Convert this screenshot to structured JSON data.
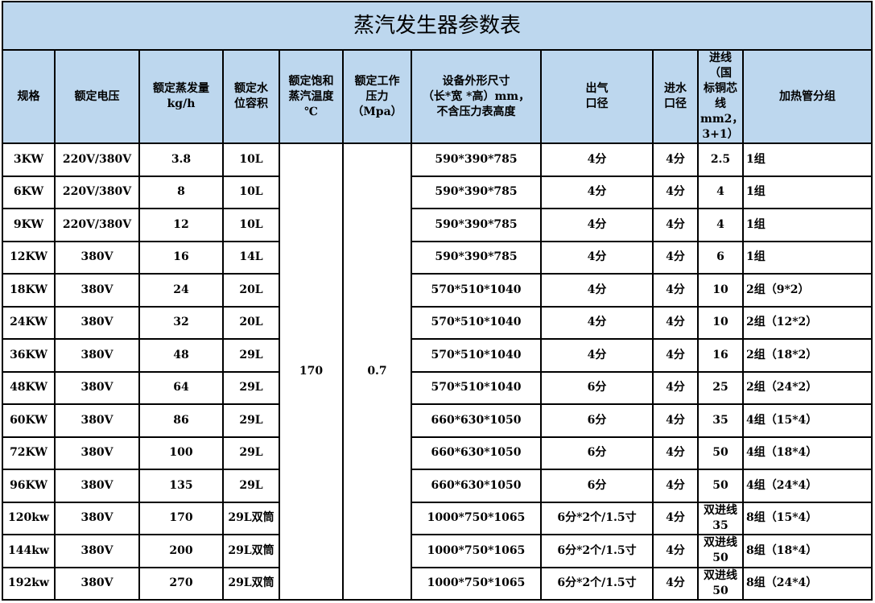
{
  "title": "蒸汽发生器参数表",
  "headers": [
    "规格",
    "额定电压",
    "额定蒸发量\nkg/h",
    "额定水\n位容积",
    "额定饱和\n蒸汽温度\n℃",
    "额定工作\n压力\n（Mpa）",
    "设备外形尺寸\n（长*宽 *高）mm，\n不含压力表高度",
    "出气\n口径",
    "进水\n口径",
    "进线（国\n标铜芯线\nmm2，\n3+1）",
    "加热管分组"
  ],
  "merged": {
    "temperature": "170",
    "pressure": "0.7"
  },
  "rows": [
    [
      "3KW",
      "220V/380V",
      "3.8",
      "10L",
      "590*390*785",
      "4分",
      "4分",
      "2.5",
      "1组"
    ],
    [
      "6KW",
      "220V/380V",
      "8",
      "10L",
      "590*390*785",
      "4分",
      "4分",
      "4",
      "1组"
    ],
    [
      "9KW",
      "220V/380V",
      "12",
      "10L",
      "590*390*785",
      "4分",
      "4分",
      "4",
      "1组"
    ],
    [
      "12KW",
      "380V",
      "16",
      "14L",
      "590*390*785",
      "4分",
      "4分",
      "6",
      "1组"
    ],
    [
      "18KW",
      "380V",
      "24",
      "20L",
      "570*510*1040",
      "4分",
      "4分",
      "10",
      "2组（9*2）"
    ],
    [
      "24KW",
      "380V",
      "32",
      "20L",
      "570*510*1040",
      "4分",
      "4分",
      "10",
      "2组（12*2）"
    ],
    [
      "36KW",
      "380V",
      "48",
      "29L",
      "570*510*1040",
      "4分",
      "4分",
      "16",
      "2组（18*2）"
    ],
    [
      "48KW",
      "380V",
      "64",
      "29L",
      "570*510*1040",
      "6分",
      "4分",
      "25",
      "2组（24*2）"
    ],
    [
      "60KW",
      "380V",
      "86",
      "29L",
      "660*630*1050",
      "6分",
      "4分",
      "35",
      "4组（15*4）"
    ],
    [
      "72KW",
      "380V",
      "100",
      "29L",
      "660*630*1050",
      "6分",
      "4分",
      "50",
      "4组（18*4）"
    ],
    [
      "96KW",
      "380V",
      "135",
      "29L",
      "660*630*1050",
      "6分",
      "4分",
      "50",
      "4组（24*4）"
    ],
    [
      "120kw",
      "380V",
      "170",
      "29L双筒",
      "1000*750*1065",
      "6分*2个/1.5寸",
      "4分",
      "双进线35",
      "8组（15*4）"
    ],
    [
      "144kw",
      "380V",
      "200",
      "29L双筒",
      "1000*750*1065",
      "6分*2个/1.5寸",
      "4分",
      "双进线50",
      "8组（18*4）"
    ],
    [
      "192kw",
      "380V",
      "270",
      "29L双筒",
      "1000*750*1065",
      "6分*2个/1.5寸",
      "4分",
      "双进线50",
      "8组（24*4）"
    ]
  ],
  "colors": {
    "header_fill": "#BDD7EE",
    "border": "#000000"
  }
}
